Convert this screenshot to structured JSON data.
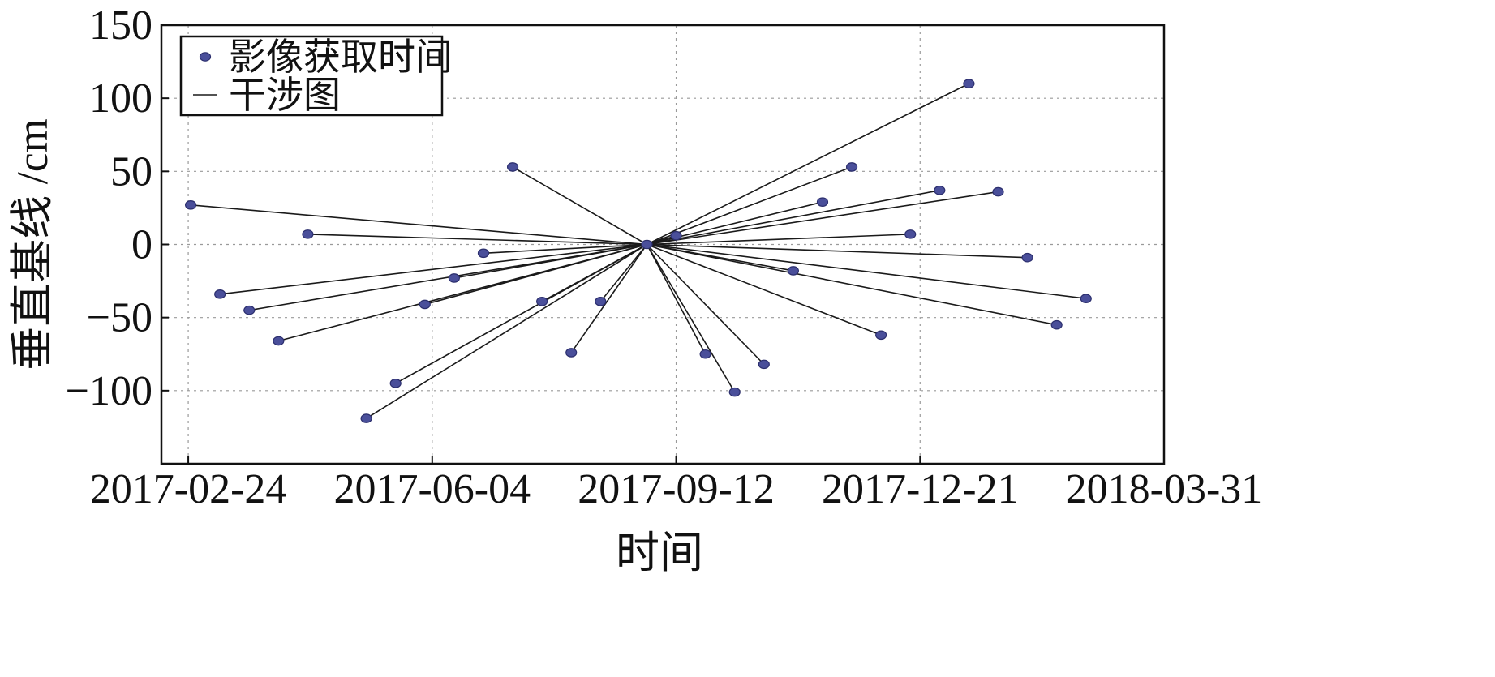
{
  "chart_data": {
    "type": "scatter",
    "xlabel": "时间",
    "ylabel": "垂直基线 /cm",
    "xlim": [
      "2017-02-13",
      "2018-03-31"
    ],
    "ylim": [
      -150,
      150
    ],
    "x_ticks": [
      "2017-02-24",
      "2017-06-04",
      "2017-09-12",
      "2017-12-21",
      "2018-03-31"
    ],
    "y_ticks": [
      150,
      100,
      50,
      0,
      -50,
      -100
    ],
    "y_tick_labels": [
      "150",
      "100",
      "50",
      "0",
      "−50",
      "−100"
    ],
    "grid": true,
    "legend": {
      "placement": "top-left",
      "entries": [
        "影像获取时间",
        "干涉图"
      ]
    },
    "master": {
      "date": "2017-08-31",
      "value": 0
    },
    "series": [
      {
        "name": "影像获取时间",
        "marker_color": "#4a4f9a",
        "points": [
          {
            "date": "2017-02-25",
            "value": 27
          },
          {
            "date": "2017-03-09",
            "value": -34
          },
          {
            "date": "2017-03-21",
            "value": -45
          },
          {
            "date": "2017-04-02",
            "value": -66
          },
          {
            "date": "2017-04-14",
            "value": 7
          },
          {
            "date": "2017-05-08",
            "value": -119
          },
          {
            "date": "2017-05-20",
            "value": -95
          },
          {
            "date": "2017-06-01",
            "value": -41
          },
          {
            "date": "2017-06-13",
            "value": -23
          },
          {
            "date": "2017-06-25",
            "value": -6
          },
          {
            "date": "2017-07-07",
            "value": 53
          },
          {
            "date": "2017-07-19",
            "value": -39
          },
          {
            "date": "2017-07-31",
            "value": -74
          },
          {
            "date": "2017-08-12",
            "value": -39
          },
          {
            "date": "2017-08-31",
            "value": 0
          },
          {
            "date": "2017-09-12",
            "value": 6
          },
          {
            "date": "2017-09-24",
            "value": -75
          },
          {
            "date": "2017-10-06",
            "value": -101
          },
          {
            "date": "2017-10-18",
            "value": -82
          },
          {
            "date": "2017-10-30",
            "value": -18
          },
          {
            "date": "2017-11-11",
            "value": 29
          },
          {
            "date": "2017-11-23",
            "value": 53
          },
          {
            "date": "2017-12-05",
            "value": -62
          },
          {
            "date": "2017-12-17",
            "value": 7
          },
          {
            "date": "2017-12-29",
            "value": 37
          },
          {
            "date": "2018-01-10",
            "value": 110
          },
          {
            "date": "2018-01-22",
            "value": 36
          },
          {
            "date": "2018-02-03",
            "value": -9
          },
          {
            "date": "2018-02-15",
            "value": -55
          },
          {
            "date": "2018-02-27",
            "value": -37
          }
        ]
      }
    ],
    "interferograms_note": "all pairs connect to master",
    "line_color": "#1a1a1a"
  }
}
